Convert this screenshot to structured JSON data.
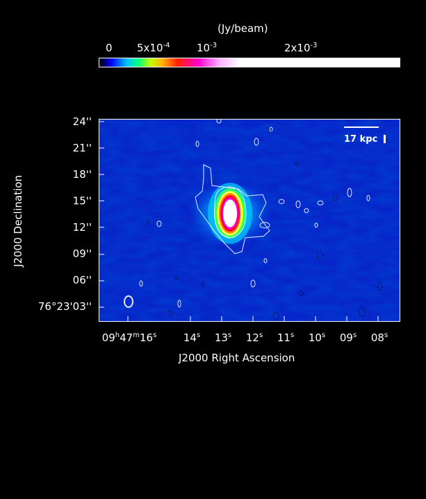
{
  "colorbar": {
    "unit_label": "(Jy/beam)",
    "ticks": [
      {
        "label": "0",
        "value": 0
      },
      {
        "label": "5x10",
        "exp": "-4",
        "value": 0.0005
      },
      {
        "label": "10",
        "exp": "-3",
        "value": 0.001
      },
      {
        "label": "2x10",
        "exp": "-3",
        "value": 0.002
      }
    ],
    "range": [
      -0.0001,
      0.0025
    ],
    "colors": [
      "#000000",
      "#0000ff",
      "#00ffff",
      "#00ff00",
      "#ffff00",
      "#ff8000",
      "#ff0000",
      "#ff00ff",
      "#ffffff"
    ]
  },
  "chart_data": {
    "type": "heatmap",
    "xlabel": "J2000 Right Ascension",
    "ylabel": "J2000 Declination",
    "x_ticks": [
      {
        "h": "09",
        "m": "47",
        "s": "16"
      },
      {
        "s": "14"
      },
      {
        "s": "13"
      },
      {
        "s": "12"
      },
      {
        "s": "11"
      },
      {
        "s": "10"
      },
      {
        "s": "09"
      },
      {
        "s": "08"
      }
    ],
    "y_ticks": [
      "24''",
      "21''",
      "18''",
      "15''",
      "12''",
      "09''",
      "06''",
      "76°23'03''"
    ],
    "scale_bar": "17 kpc",
    "source": {
      "ra_s": 12.8,
      "dec_arcsec": 13.8,
      "peak_jy_per_beam": 0.0025
    },
    "background_color": "#0a28d8"
  }
}
